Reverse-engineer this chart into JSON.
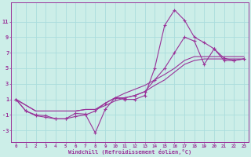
{
  "background_color": "#cceee8",
  "grid_color": "#aadddd",
  "line_color": "#993399",
  "xlabel": "Windchill (Refroidissement éolien,°C)",
  "xlim": [
    -0.5,
    23.5
  ],
  "ylim": [
    -4.5,
    13.5
  ],
  "xticks": [
    0,
    1,
    2,
    3,
    4,
    5,
    6,
    7,
    8,
    9,
    10,
    11,
    12,
    13,
    14,
    15,
    16,
    17,
    18,
    19,
    20,
    21,
    22,
    23
  ],
  "yticks": [
    -3,
    -1,
    1,
    3,
    5,
    7,
    9,
    11
  ],
  "series1_x": [
    0,
    1,
    2,
    3,
    4,
    5,
    6,
    7,
    8,
    9,
    10,
    11,
    12,
    13,
    14,
    15,
    16,
    17,
    18,
    19,
    20,
    21,
    22,
    23
  ],
  "series1_y": [
    1.0,
    -0.5,
    -1.1,
    -1.3,
    -1.5,
    -1.5,
    -0.8,
    -0.9,
    -3.3,
    -0.3,
    1.2,
    1.0,
    1.0,
    1.5,
    5.0,
    10.5,
    12.5,
    11.2,
    9.0,
    8.3,
    7.5,
    6.3,
    6.0,
    6.2
  ],
  "series2_x": [
    0,
    2,
    3,
    4,
    5,
    6,
    7,
    8,
    9,
    10,
    11,
    12,
    13,
    14,
    15,
    16,
    17,
    18,
    19,
    20,
    21,
    22,
    23
  ],
  "series2_y": [
    1.0,
    -0.5,
    -0.5,
    -0.5,
    -0.5,
    -0.5,
    -0.3,
    -0.3,
    0.2,
    0.8,
    1.2,
    1.5,
    2.0,
    2.8,
    3.5,
    4.5,
    5.5,
    6.0,
    6.2,
    6.2,
    6.2,
    6.2,
    6.2
  ],
  "series3_x": [
    0,
    2,
    3,
    4,
    5,
    6,
    7,
    8,
    9,
    10,
    11,
    12,
    13,
    14,
    15,
    16,
    17,
    18,
    19,
    20,
    21,
    22,
    23
  ],
  "series3_y": [
    1.0,
    -0.5,
    -0.5,
    -0.5,
    -0.5,
    -0.5,
    -0.3,
    -0.3,
    0.5,
    1.2,
    1.8,
    2.3,
    2.8,
    3.5,
    4.2,
    5.0,
    6.0,
    6.5,
    6.5,
    6.5,
    6.5,
    6.5,
    6.5
  ],
  "series4_x": [
    0,
    1,
    2,
    3,
    4,
    5,
    6,
    7,
    8,
    9,
    10,
    11,
    12,
    13,
    14,
    15,
    16,
    17,
    18,
    19,
    20,
    21,
    22,
    23
  ],
  "series4_y": [
    1.0,
    -0.5,
    -1.0,
    -1.1,
    -1.5,
    -1.5,
    -1.2,
    -1.0,
    -0.5,
    0.5,
    1.2,
    1.2,
    1.5,
    2.0,
    3.5,
    5.0,
    7.0,
    9.0,
    8.5,
    5.5,
    7.5,
    6.0,
    6.0,
    6.2
  ]
}
